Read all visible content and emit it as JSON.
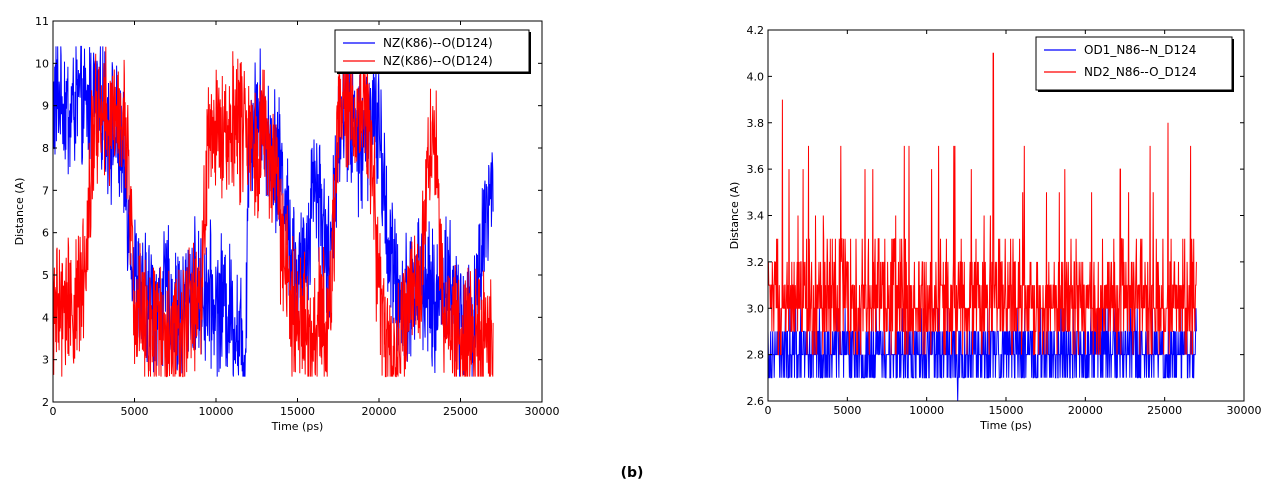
{
  "caption": "(b)",
  "chart_data": [
    {
      "type": "line",
      "title": "",
      "xlabel": "Time (ps)",
      "ylabel": "Distance (A)",
      "xlim": [
        0,
        30000
      ],
      "ylim": [
        2,
        11
      ],
      "xticks": [
        0,
        5000,
        10000,
        15000,
        20000,
        25000,
        30000
      ],
      "yticks": [
        2,
        3,
        4,
        5,
        6,
        7,
        8,
        9,
        10,
        11
      ],
      "grid": false,
      "legend": "top-right",
      "x_range": [
        0,
        27000
      ],
      "series": [
        {
          "name": "NZ(K86)--O(D124)",
          "color": "#0000ff",
          "trend": [
            [
              0,
              9.0
            ],
            [
              500,
              9.3
            ],
            [
              1000,
              8.7
            ],
            [
              1500,
              9.2
            ],
            [
              2000,
              8.8
            ],
            [
              2500,
              9.3
            ],
            [
              3000,
              9.1
            ],
            [
              3500,
              8.5
            ],
            [
              4000,
              8.2
            ],
            [
              4500,
              7.0
            ],
            [
              5000,
              5.0
            ],
            [
              5500,
              4.3
            ],
            [
              6000,
              4.5
            ],
            [
              6500,
              4.2
            ],
            [
              7000,
              4.6
            ],
            [
              7500,
              4.0
            ],
            [
              8000,
              4.3
            ],
            [
              8500,
              4.8
            ],
            [
              9000,
              4.4
            ],
            [
              9500,
              4.6
            ],
            [
              10000,
              4.2
            ],
            [
              10500,
              4.4
            ],
            [
              11000,
              4.0
            ],
            [
              11500,
              3.6
            ],
            [
              11800,
              3.0
            ],
            [
              12000,
              8.3
            ],
            [
              12500,
              8.8
            ],
            [
              13000,
              8.5
            ],
            [
              13500,
              8.0
            ],
            [
              14000,
              7.5
            ],
            [
              14500,
              6.0
            ],
            [
              15000,
              4.8
            ],
            [
              15500,
              5.2
            ],
            [
              16000,
              7.5
            ],
            [
              16500,
              6.5
            ],
            [
              17000,
              5.0
            ],
            [
              17500,
              8.5
            ],
            [
              18000,
              9.0
            ],
            [
              18500,
              8.3
            ],
            [
              19000,
              8.0
            ],
            [
              19500,
              8.8
            ],
            [
              20000,
              8.5
            ],
            [
              20500,
              6.0
            ],
            [
              21000,
              4.7
            ],
            [
              21500,
              4.3
            ],
            [
              22000,
              4.8
            ],
            [
              22500,
              5.0
            ],
            [
              23000,
              4.5
            ],
            [
              23500,
              4.2
            ],
            [
              24000,
              5.2
            ],
            [
              24500,
              4.5
            ],
            [
              25000,
              4.2
            ],
            [
              25500,
              3.8
            ],
            [
              26000,
              4.5
            ],
            [
              26500,
              6.5
            ],
            [
              27000,
              7.0
            ]
          ]
        },
        {
          "name": "NZ(K86)--O(D124)",
          "color": "#ff0000",
          "trend": [
            [
              0,
              4.2
            ],
            [
              500,
              4.0
            ],
            [
              1000,
              4.5
            ],
            [
              1500,
              4.2
            ],
            [
              2000,
              5.5
            ],
            [
              2500,
              8.6
            ],
            [
              3000,
              8.8
            ],
            [
              3500,
              8.5
            ],
            [
              4000,
              9.0
            ],
            [
              4500,
              8.5
            ],
            [
              5000,
              4.0
            ],
            [
              5500,
              4.3
            ],
            [
              6000,
              3.8
            ],
            [
              6500,
              4.0
            ],
            [
              7000,
              3.5
            ],
            [
              7500,
              3.9
            ],
            [
              8000,
              3.7
            ],
            [
              8500,
              4.4
            ],
            [
              9000,
              4.0
            ],
            [
              9500,
              8.0
            ],
            [
              10000,
              8.5
            ],
            [
              10500,
              8.3
            ],
            [
              11000,
              8.8
            ],
            [
              11500,
              8.4
            ],
            [
              12000,
              8.6
            ],
            [
              12500,
              8.0
            ],
            [
              13000,
              8.4
            ],
            [
              13500,
              7.5
            ],
            [
              14000,
              6.0
            ],
            [
              14500,
              4.5
            ],
            [
              15000,
              3.6
            ],
            [
              15500,
              4.0
            ],
            [
              16000,
              3.3
            ],
            [
              16500,
              4.2
            ],
            [
              17000,
              4.0
            ],
            [
              17500,
              8.8
            ],
            [
              18000,
              9.2
            ],
            [
              18500,
              8.7
            ],
            [
              19000,
              9.0
            ],
            [
              19500,
              8.2
            ],
            [
              20000,
              4.5
            ],
            [
              20500,
              3.5
            ],
            [
              21000,
              3.2
            ],
            [
              21500,
              4.0
            ],
            [
              22000,
              4.8
            ],
            [
              22500,
              4.2
            ],
            [
              23000,
              8.2
            ],
            [
              23500,
              7.8
            ],
            [
              24000,
              4.3
            ],
            [
              24500,
              3.8
            ],
            [
              25000,
              3.5
            ],
            [
              25500,
              3.5
            ],
            [
              26000,
              3.7
            ],
            [
              26500,
              3.9
            ],
            [
              27000,
              3.2
            ]
          ]
        }
      ]
    },
    {
      "type": "line",
      "title": "",
      "xlabel": "Time (ps)",
      "ylabel": "Distance (A)",
      "xlim": [
        0,
        30000
      ],
      "ylim": [
        2.6,
        4.2
      ],
      "xticks": [
        0,
        5000,
        10000,
        15000,
        20000,
        25000,
        30000
      ],
      "yticks": [
        2.6,
        2.8,
        3.0,
        3.2,
        3.4,
        3.6,
        3.8,
        4.0,
        4.2
      ],
      "grid": false,
      "legend": "top-right",
      "x_range": [
        0,
        27000
      ],
      "series": [
        {
          "name": "OD1_N86--N_D124",
          "color": "#0000ff",
          "levels": [
            2.7,
            2.8,
            2.9,
            3.0
          ],
          "level_weights": [
            0.25,
            0.4,
            0.3,
            0.05
          ],
          "extremes": [
            [
              11950,
              2.6
            ]
          ]
        },
        {
          "name": "ND2_N86--O_D124",
          "color": "#ff0000",
          "levels": [
            2.8,
            2.9,
            3.0,
            3.1,
            3.2,
            3.3
          ],
          "level_weights": [
            0.07,
            0.2,
            0.33,
            0.22,
            0.12,
            0.06
          ],
          "extremes": [
            [
              900,
              3.9
            ],
            [
              14200,
              4.1
            ],
            [
              25200,
              3.8
            ]
          ]
        }
      ]
    }
  ]
}
